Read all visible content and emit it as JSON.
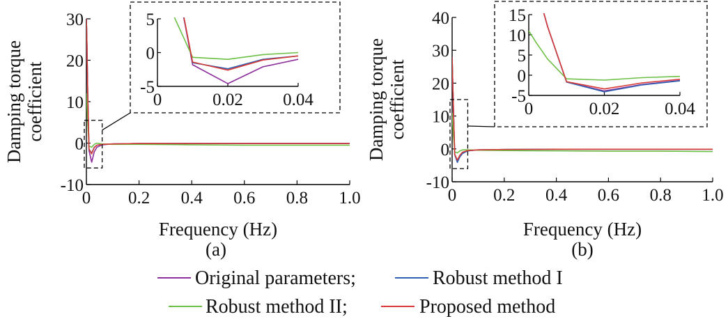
{
  "chart_data": [
    {
      "type": "line",
      "panel_label": "(a)",
      "xlabel": "Frequency (Hz)",
      "ylabel": [
        "Damping torque",
        "coefficient"
      ],
      "xlim": [
        0,
        1.0
      ],
      "ylim": [
        -10,
        30
      ],
      "x_ticks": [
        "0",
        "0.2",
        "0.4",
        "0.6",
        "0.8",
        "1.0"
      ],
      "x_tick_values": [
        0,
        0.2,
        0.4,
        0.6,
        0.8,
        1.0
      ],
      "y_ticks": [
        "-10",
        "0",
        "10",
        "20",
        "30"
      ],
      "y_tick_values": [
        -10,
        0,
        10,
        20,
        30
      ],
      "grid": false,
      "series": [
        {
          "name": "Original parameters",
          "color": "#8b2d9a",
          "x": [
            0,
            0.002,
            0.005,
            0.01,
            0.02,
            0.03,
            0.04,
            0.06,
            0.1,
            0.2,
            0.4,
            0.6,
            0.8,
            1.0
          ],
          "y": [
            30,
            24,
            12,
            -1.8,
            -4.6,
            -2.1,
            -1,
            -0.4,
            -0.2,
            -0.1,
            -0.1,
            -0.1,
            -0.1,
            -0.1
          ]
        },
        {
          "name": "Robust method I",
          "color": "#2f5fb0",
          "x": [
            0,
            0.002,
            0.005,
            0.01,
            0.02,
            0.03,
            0.04,
            0.06,
            0.1,
            0.2,
            0.4,
            0.6,
            0.8,
            1.0
          ],
          "y": [
            30,
            24,
            12,
            -1.5,
            -2.4,
            -1.0,
            -0.5,
            -0.3,
            -0.2,
            -0.1,
            -0.1,
            -0.1,
            -0.1,
            -0.1
          ]
        },
        {
          "name": "Robust method II",
          "color": "#6cbf45",
          "x": [
            0,
            0.002,
            0.005,
            0.01,
            0.02,
            0.03,
            0.04,
            0.06,
            0.1,
            0.2,
            0.4,
            0.6,
            0.8,
            1.0
          ],
          "y": [
            12,
            9,
            5,
            -0.7,
            -1.0,
            -0.3,
            0.0,
            -0.2,
            -0.3,
            -0.3,
            -0.4,
            -0.5,
            -0.5,
            -0.5
          ]
        },
        {
          "name": "Proposed method",
          "color": "#d83a36",
          "x": [
            0,
            0.002,
            0.005,
            0.01,
            0.02,
            0.03,
            0.04,
            0.06,
            0.1,
            0.2,
            0.4,
            0.6,
            0.8,
            1.0
          ],
          "y": [
            30,
            24,
            12,
            -1.4,
            -2.6,
            -1.1,
            -0.5,
            -0.3,
            -0.2,
            -0.1,
            -0.1,
            -0.1,
            -0.1,
            -0.1
          ]
        }
      ],
      "inset": {
        "xlim": [
          0,
          0.04
        ],
        "ylim": [
          -5,
          5
        ],
        "x_ticks": [
          "0",
          "0.02",
          "0.04"
        ],
        "x_tick_values": [
          0,
          0.02,
          0.04
        ],
        "y_ticks": [
          "-5",
          "0",
          "5"
        ],
        "y_tick_values": [
          -5,
          0,
          5
        ]
      },
      "zoom_region": {
        "xlim": [
          0,
          0.06
        ],
        "ylim": [
          -6,
          5.5
        ]
      }
    },
    {
      "type": "line",
      "panel_label": "(b)",
      "xlabel": "Frequency (Hz)",
      "ylabel": [
        "Damping torque",
        "coefficient"
      ],
      "xlim": [
        0,
        1.0
      ],
      "ylim": [
        -10,
        40
      ],
      "x_ticks": [
        "0",
        "0.2",
        "0.4",
        "0.6",
        "0.8",
        "1.0"
      ],
      "x_tick_values": [
        0,
        0.2,
        0.4,
        0.6,
        0.8,
        1.0
      ],
      "y_ticks": [
        "-10",
        "0",
        "10",
        "20",
        "30",
        "40"
      ],
      "y_tick_values": [
        -10,
        0,
        10,
        20,
        30,
        40
      ],
      "grid": false,
      "series": [
        {
          "name": "Original parameters",
          "color": "#8b2d9a",
          "x": [
            0,
            0.002,
            0.005,
            0.01,
            0.02,
            0.03,
            0.04,
            0.06,
            0.1,
            0.2,
            0.4,
            0.6,
            0.8,
            1.0
          ],
          "y": [
            28,
            22,
            12,
            -1.7,
            -3.9,
            -2.3,
            -1.3,
            -0.6,
            -0.3,
            -0.2,
            -0.1,
            -0.1,
            -0.1,
            -0.1
          ]
        },
        {
          "name": "Robust method I",
          "color": "#2f5fb0",
          "x": [
            0,
            0.002,
            0.005,
            0.01,
            0.02,
            0.03,
            0.04,
            0.06,
            0.1,
            0.2,
            0.4,
            0.6,
            0.8,
            1.0
          ],
          "y": [
            28,
            22,
            12,
            -1.7,
            -4.1,
            -2.4,
            -1.4,
            -0.6,
            -0.3,
            -0.2,
            -0.1,
            -0.1,
            -0.1,
            -0.1
          ]
        },
        {
          "name": "Robust method II",
          "color": "#6cbf45",
          "x": [
            0,
            0.002,
            0.005,
            0.01,
            0.02,
            0.03,
            0.04,
            0.06,
            0.1,
            0.2,
            0.4,
            0.6,
            0.8,
            1.0
          ],
          "y": [
            11,
            8,
            4,
            -0.9,
            -1.2,
            -0.6,
            -0.3,
            -0.3,
            -0.4,
            -0.5,
            -0.6,
            -0.7,
            -0.7,
            -0.8
          ]
        },
        {
          "name": "Proposed method",
          "color": "#d83a36",
          "x": [
            0,
            0.002,
            0.005,
            0.01,
            0.02,
            0.03,
            0.04,
            0.06,
            0.1,
            0.2,
            0.4,
            0.6,
            0.8,
            1.0
          ],
          "y": [
            28,
            22,
            12,
            -1.6,
            -3.4,
            -1.9,
            -1.0,
            -0.5,
            -0.3,
            -0.2,
            -0.1,
            -0.1,
            -0.1,
            -0.1
          ]
        }
      ],
      "inset": {
        "xlim": [
          0,
          0.04
        ],
        "ylim": [
          -5,
          15
        ],
        "x_ticks": [
          "0",
          "0.02",
          "0.04"
        ],
        "x_tick_values": [
          0,
          0.02,
          0.04
        ],
        "y_ticks": [
          "-5",
          "0",
          "5",
          "10",
          "15"
        ],
        "y_tick_values": [
          -5,
          0,
          5,
          10,
          15
        ]
      },
      "zoom_region": {
        "xlim": [
          0,
          0.06
        ],
        "ylim": [
          -6,
          15
        ]
      }
    }
  ],
  "legend": {
    "placement": "bottom",
    "rows": [
      [
        {
          "series": 0,
          "label": "Original parameters;"
        },
        {
          "series": 1,
          "label": "Robust method I"
        }
      ],
      [
        {
          "series": 2,
          "label": "Robust method II;"
        },
        {
          "series": 3,
          "label": "Proposed method"
        }
      ]
    ]
  }
}
